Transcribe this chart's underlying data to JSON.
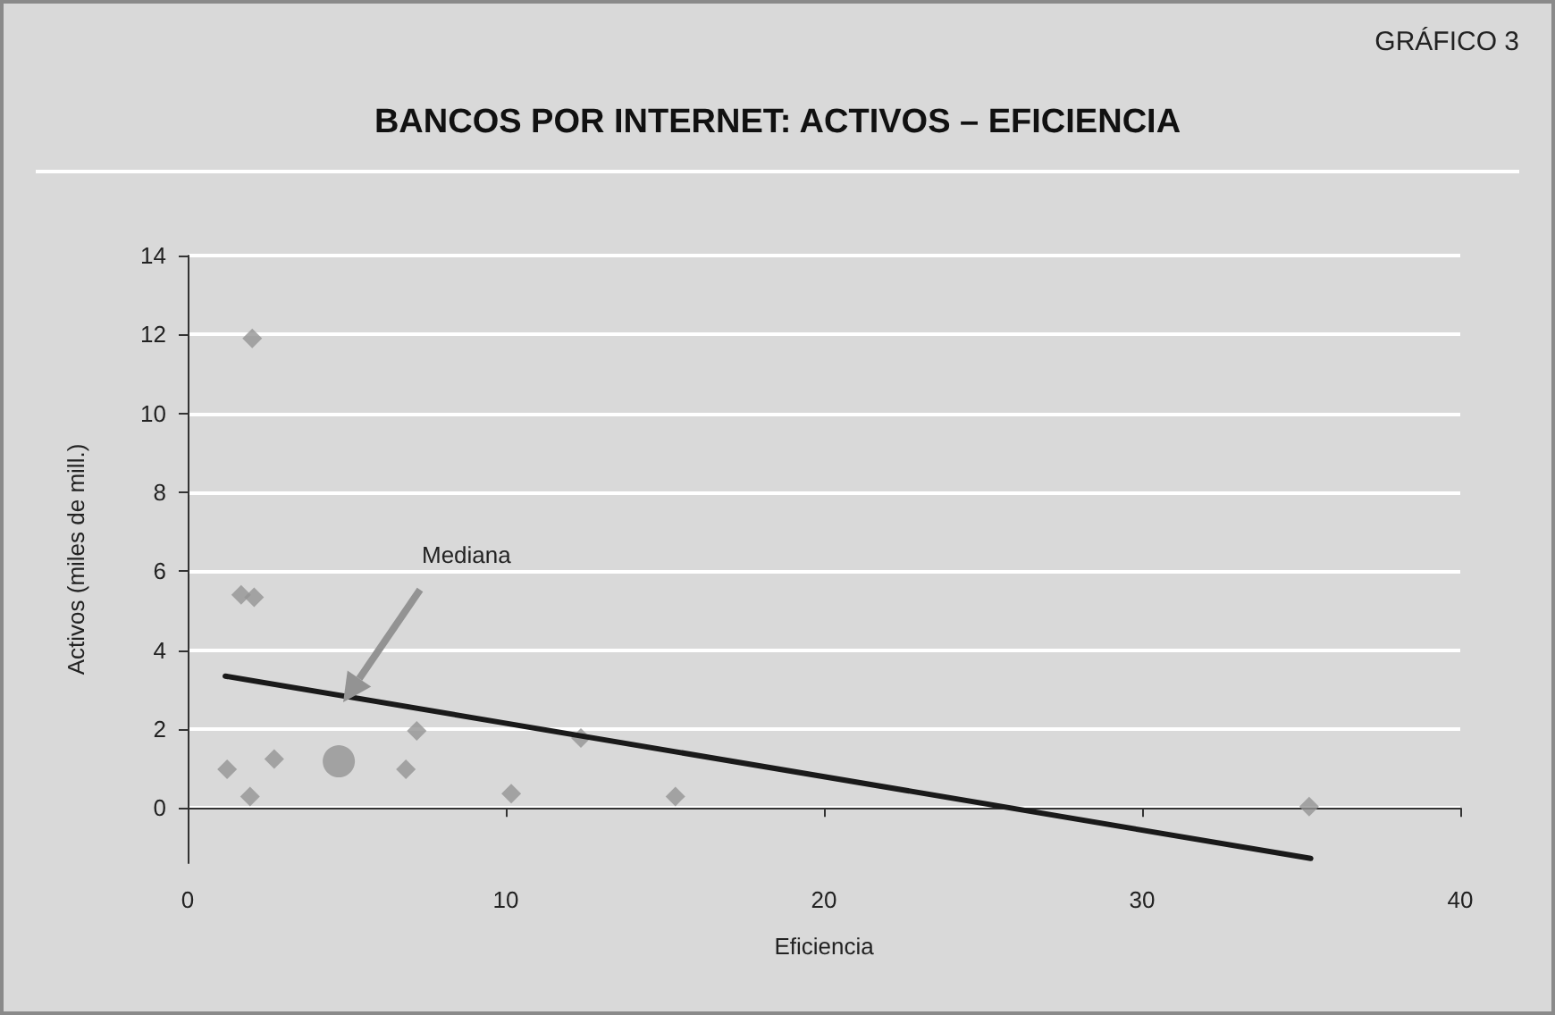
{
  "chart_data": {
    "type": "scatter",
    "title": "BANCOS POR INTERNET: ACTIVOS – EFICIENCIA",
    "xlabel": "Eficiencia",
    "ylabel": "Activos (miles de mill.)",
    "annotations": [
      "GRÁFICO 3",
      "Mediana"
    ],
    "series": [
      {
        "color": "#939393",
        "marker": "diamond",
        "x": [
          2.03,
          1.68,
          2.09,
          1.24,
          1.96,
          2.72,
          6.86,
          7.2,
          10.17,
          12.36,
          15.33,
          35.25
        ],
        "values": [
          11.9,
          5.4,
          5.34,
          0.98,
          0.29,
          1.24,
          0.98,
          1.95,
          0.36,
          1.77,
          0.29,
          0.03
        ]
      },
      {
        "color": "#939393",
        "marker": "circle",
        "x": [
          4.75
        ],
        "values": [
          1.18
        ]
      },
      {
        "type": "line",
        "color": "#1a1a1a",
        "marker": "none",
        "x": [
          1.18,
          35.3
        ],
        "values": [
          3.34,
          -1.28
        ]
      }
    ],
    "xlim": [
      0,
      40
    ],
    "xticks": [
      0,
      10,
      20,
      30,
      40
    ],
    "ylim": [
      -1.4,
      14
    ],
    "yticks": [
      0,
      2,
      4,
      6,
      8,
      10,
      12,
      14
    ],
    "grid": "y"
  }
}
